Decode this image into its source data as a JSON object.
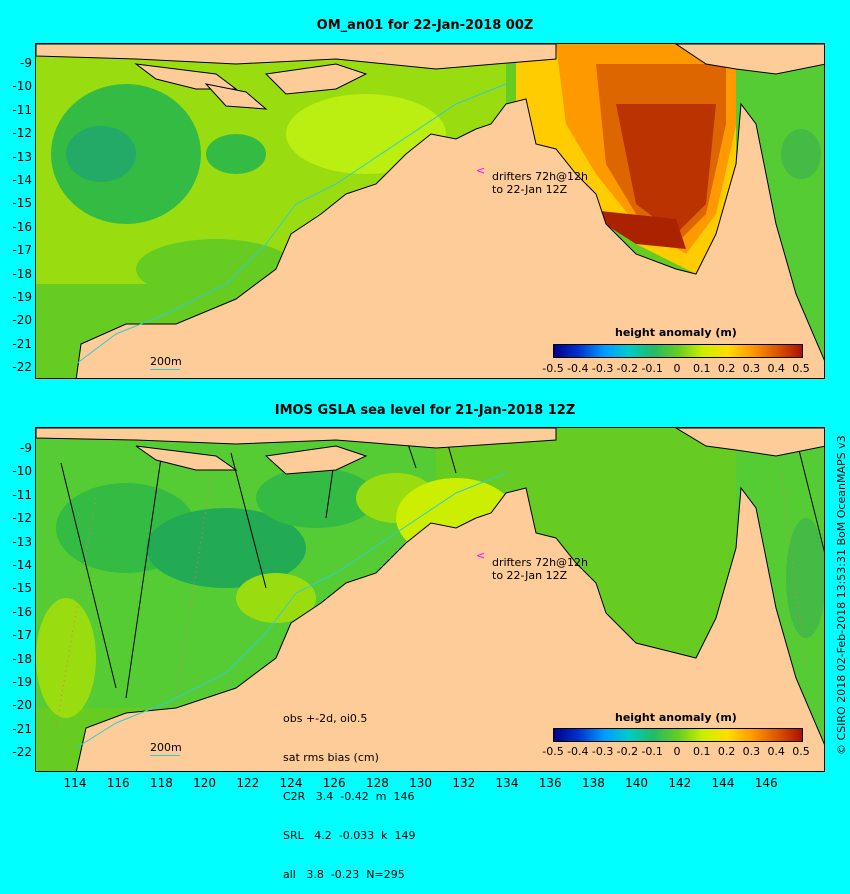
{
  "top_panel": {
    "title": "OM_an01 for 22-Jan-2018 00Z",
    "drifters_line1": "drifters 72h@12h",
    "drifters_line2": "to 22-Jan 12Z",
    "scale_label": "200m",
    "colorbar_title": "height anomaly (m)"
  },
  "bottom_panel": {
    "title": "IMOS GSLA sea level  for 21-Jan-2018 12Z",
    "drifters_line1": "drifters 72h@12h",
    "drifters_line2": "to 22-Jan 12Z",
    "scale_label": "200m",
    "colorbar_title": "height anomaly (m)",
    "stats": {
      "line1": "obs +-2d, oi0.5",
      "line2": "sat rms bias (cm)",
      "line3": "C2R   3.4  -0.42  m  146",
      "line4": "SRL   4.2  -0.033  k  149",
      "line5": "all   3.8  -0.23  N=295"
    }
  },
  "colorbar_ticks": [
    "-0.5",
    "-0.4",
    "-0.3",
    "-0.2",
    "-0.1",
    "0",
    "0.1",
    "0.2",
    "0.3",
    "0.4",
    "0.5"
  ],
  "y_ticks": [
    "-9",
    "-10",
    "-11",
    "-12",
    "-13",
    "-14",
    "-15",
    "-16",
    "-17",
    "-18",
    "-19",
    "-20",
    "-21",
    "-22"
  ],
  "x_ticks": [
    "114",
    "116",
    "118",
    "120",
    "122",
    "124",
    "126",
    "128",
    "130",
    "132",
    "134",
    "136",
    "138",
    "140",
    "142",
    "144",
    "146"
  ],
  "side_credit": "© CSIRO 2018  02-Feb-2018 13:53:31 BoM OceanMAPS v3",
  "colors": {
    "land": "#fdcc99",
    "shelf": "#c0a890",
    "background": "#00ffff",
    "drifter_arrow": "#ff00ff"
  }
}
